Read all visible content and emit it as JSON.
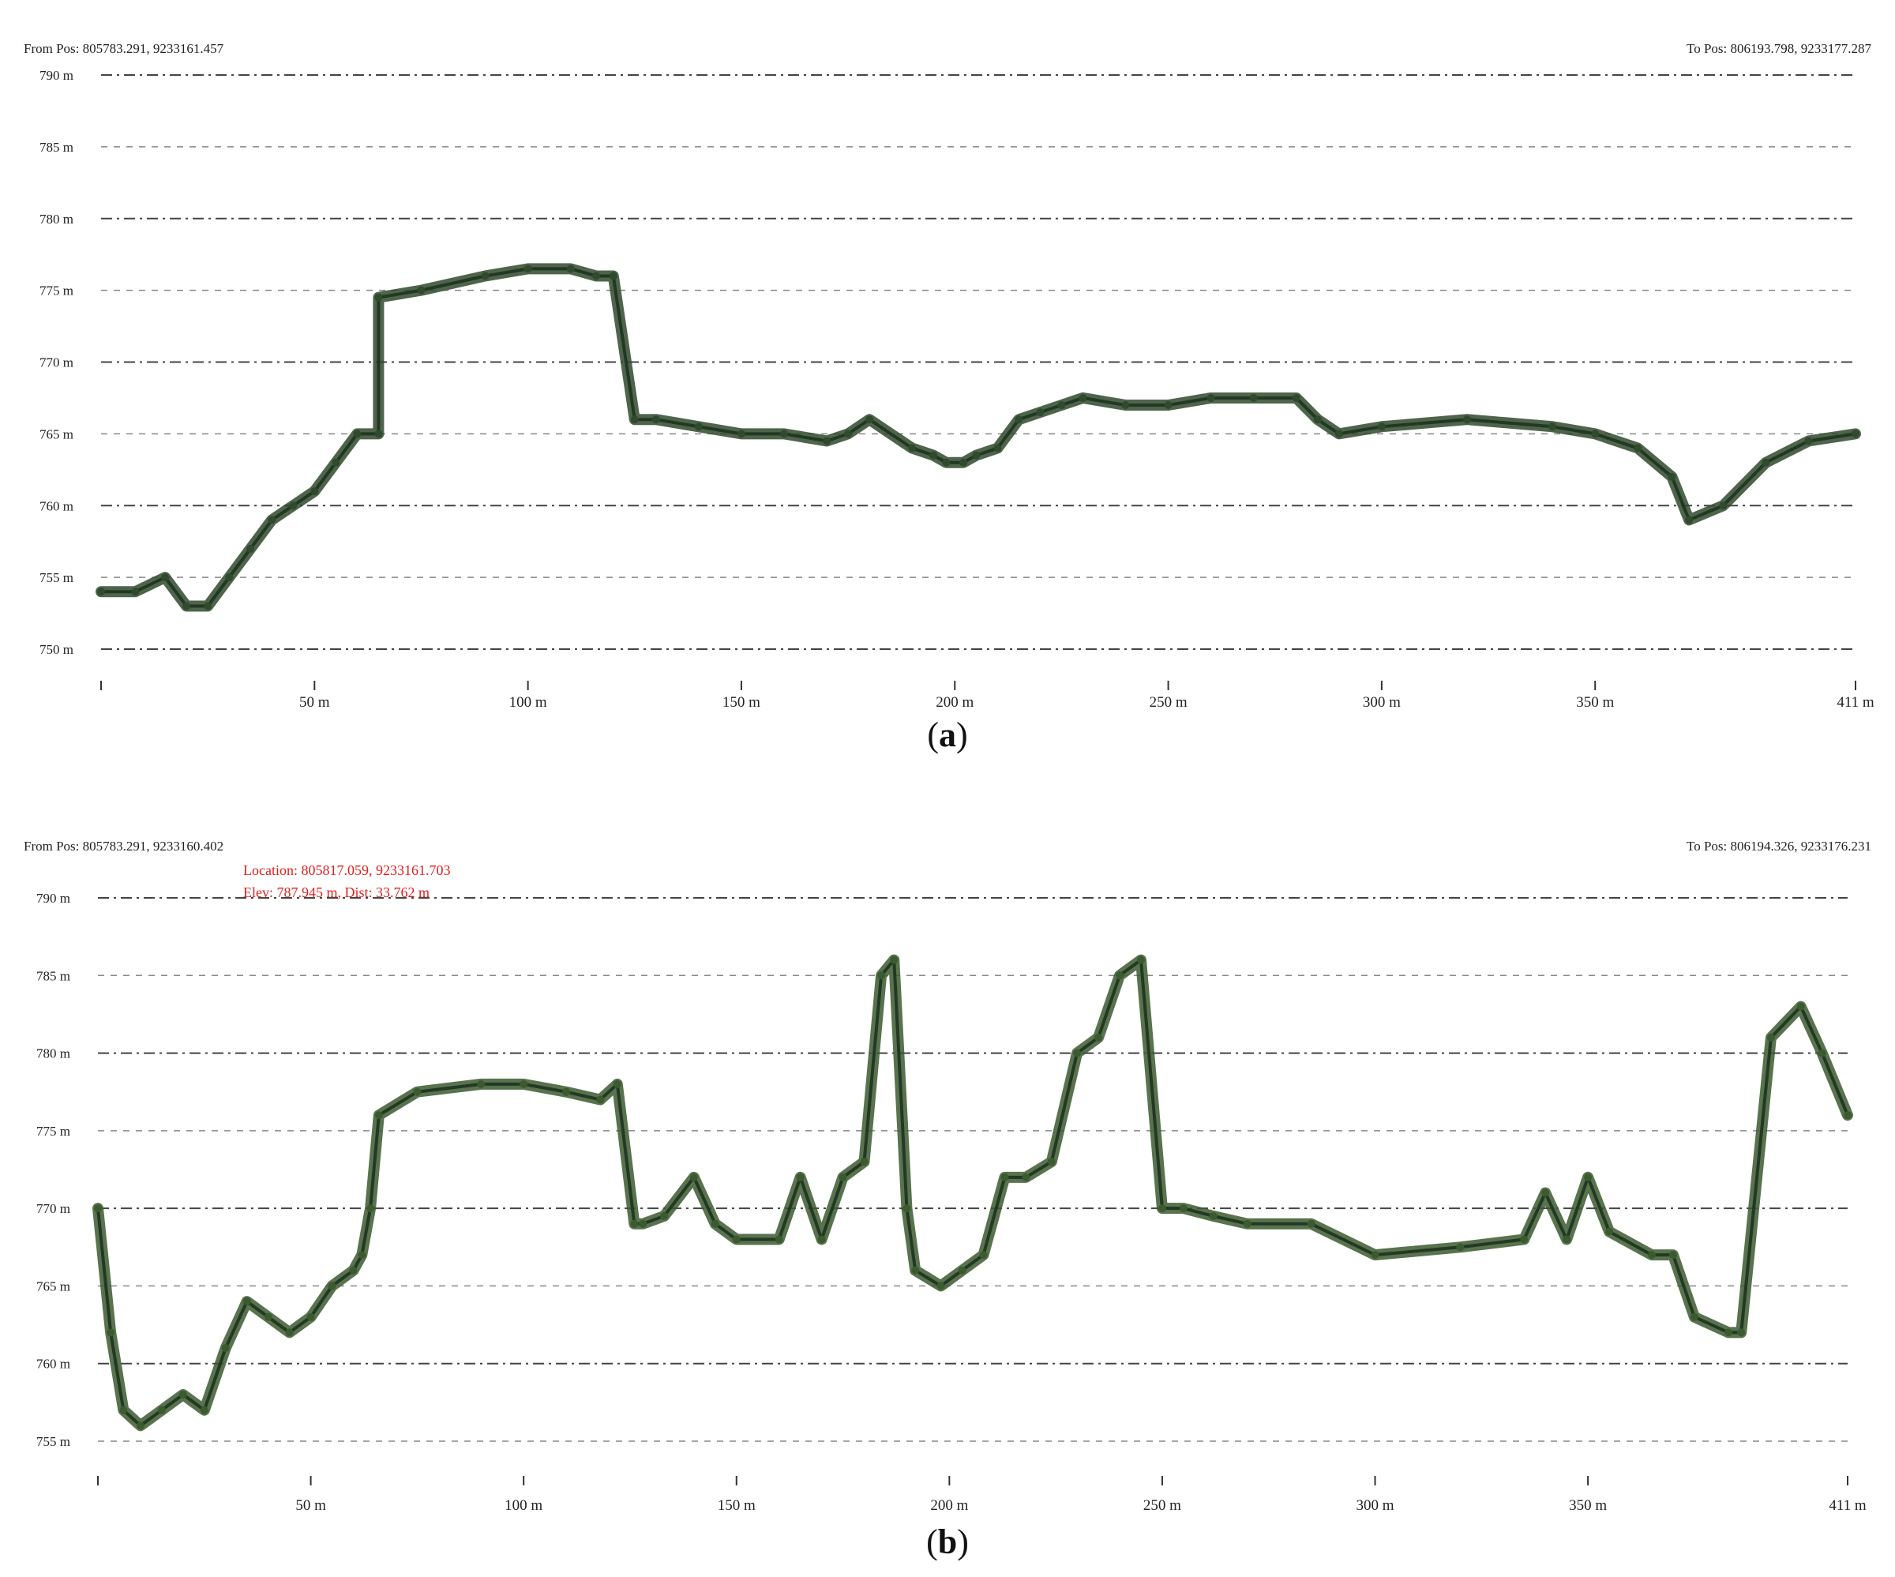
{
  "panels": [
    {
      "id": "a",
      "caption_letter": "a",
      "from_pos": "From Pos: 805783.291, 9233161.457",
      "to_pos": "To Pos: 806193.798, 9233177.287",
      "readout": null
    },
    {
      "id": "b",
      "caption_letter": "b",
      "from_pos": "From Pos: 805783.291, 9233160.402",
      "to_pos": "To Pos: 806194.326, 9233176.231",
      "readout": {
        "location": "Location: 805817.059, 9233161.703",
        "elev": "Elev: 787.945 m, Dist: 33.762 m"
      }
    }
  ],
  "chart_data": [
    {
      "type": "scatter",
      "title": "",
      "xlabel": "",
      "ylabel": "",
      "ylim": [
        750,
        790
      ],
      "xlim": [
        0,
        411
      ],
      "grid": true,
      "y_ticks": [
        "750 m",
        "755 m",
        "760 m",
        "765 m",
        "770 m",
        "775 m",
        "780 m",
        "785 m",
        "790 m"
      ],
      "x_ticks": [
        "50 m",
        "100 m",
        "150 m",
        "200 m",
        "250 m",
        "300 m",
        "350 m",
        "411 m"
      ],
      "series": [
        {
          "color": "#2f4a2c",
          "x": [
            0,
            8,
            15,
            20,
            25,
            30,
            35,
            40,
            45,
            50,
            55,
            60,
            65,
            65,
            75,
            90,
            100,
            110,
            116,
            120,
            125,
            130,
            140,
            150,
            160,
            170,
            175,
            180,
            190,
            195,
            198,
            202,
            205,
            210,
            215,
            220,
            225,
            230,
            240,
            250,
            260,
            270,
            280,
            285,
            290,
            300,
            320,
            340,
            350,
            360,
            368,
            372,
            380,
            390,
            400,
            411
          ],
          "y": [
            754,
            754,
            755,
            753,
            753,
            755,
            757,
            759,
            760,
            761,
            763,
            765,
            765,
            774.5,
            775,
            776,
            776.5,
            776.5,
            776,
            776,
            766,
            766,
            765.5,
            765,
            765,
            764.5,
            765,
            766,
            764,
            763.5,
            763,
            763,
            763.5,
            764,
            766,
            766.5,
            767,
            767.5,
            767,
            767,
            767.5,
            767.5,
            767.5,
            766,
            765,
            765.5,
            766,
            765.5,
            765,
            764,
            762,
            759,
            760,
            763,
            764.5,
            765
          ]
        }
      ]
    },
    {
      "type": "scatter",
      "title": "",
      "xlabel": "",
      "ylabel": "",
      "ylim": [
        755,
        790
      ],
      "xlim": [
        0,
        411
      ],
      "grid": true,
      "y_ticks": [
        "755 m",
        "760 m",
        "765 m",
        "770 m",
        "775 m",
        "780 m",
        "785 m",
        "790 m"
      ],
      "x_ticks": [
        "50 m",
        "100 m",
        "150 m",
        "200 m",
        "250 m",
        "300 m",
        "350 m",
        "411 m"
      ],
      "series": [
        {
          "color": "#3b5a2f",
          "x": [
            0,
            3,
            6,
            10,
            15,
            20,
            25,
            30,
            35,
            40,
            45,
            50,
            55,
            60,
            62,
            64,
            66,
            75,
            90,
            100,
            110,
            118,
            122,
            126,
            128,
            133,
            140,
            145,
            150,
            160,
            165,
            170,
            175,
            180,
            184,
            187,
            190,
            192,
            198,
            203,
            208,
            213,
            218,
            224,
            230,
            235,
            240,
            245,
            250,
            255,
            262,
            270,
            285,
            300,
            320,
            335,
            340,
            345,
            350,
            355,
            365,
            370,
            375,
            383,
            386,
            393,
            400,
            405,
            411
          ],
          "y": [
            770,
            762,
            757,
            756,
            757,
            758,
            757,
            761,
            764,
            763,
            762,
            763,
            765,
            766,
            767,
            770,
            776,
            777.5,
            778,
            778,
            777.5,
            777,
            778,
            769,
            769,
            769.5,
            772,
            769,
            768,
            768,
            772,
            768,
            772,
            773,
            785,
            786,
            770,
            766,
            765,
            766,
            767,
            772,
            772,
            773,
            780,
            781,
            785,
            786,
            770,
            770,
            769.5,
            769,
            769,
            767,
            767.5,
            768,
            771,
            768,
            772,
            768.5,
            767,
            767,
            763,
            762,
            762,
            781,
            783,
            780,
            776
          ]
        }
      ]
    }
  ],
  "colors": {
    "vegetation": "#2f4a2c",
    "ground": "#4f6b3a",
    "roof": "#b8bcb8",
    "highlight": "#b04545",
    "readout": "#e02020"
  }
}
